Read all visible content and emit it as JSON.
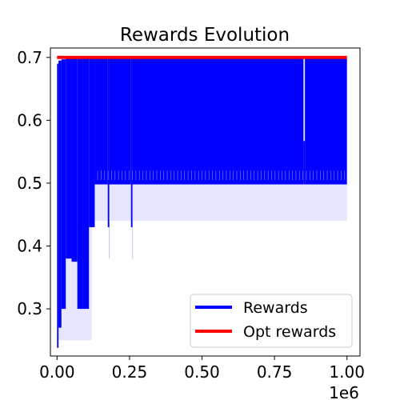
{
  "chart_data": {
    "type": "line",
    "title": "Rewards Evolution",
    "xlabel": "",
    "ylabel": "",
    "x_offset_label": "1e6",
    "xlim": [
      -0.023,
      1.045
    ],
    "ylim": [
      0.225,
      0.715
    ],
    "xticks": [
      0.0,
      0.25,
      0.5,
      0.75,
      1.0
    ],
    "xtick_labels": [
      "0.00",
      "0.25",
      "0.50",
      "0.75",
      "1.00"
    ],
    "yticks": [
      0.3,
      0.4,
      0.5,
      0.6,
      0.7
    ],
    "ytick_labels": [
      "0.3",
      "0.4",
      "0.5",
      "0.6",
      "0.7"
    ],
    "grid": false,
    "legend": {
      "position": "lower right"
    },
    "colors": {
      "rewards": "#0000ff",
      "opt": "#ff0000",
      "band": "#e6e6ff"
    },
    "series": [
      {
        "name": "Rewards",
        "color": "#0000ff",
        "note_values": "oscillating envelope per x-segment: [x_start, x_end, min, max]",
        "segments": [
          [
            0.0,
            0.005,
            0.238,
            0.69
          ],
          [
            0.005,
            0.015,
            0.27,
            0.695
          ],
          [
            0.015,
            0.03,
            0.3,
            0.697
          ],
          [
            0.03,
            0.05,
            0.38,
            0.698
          ],
          [
            0.05,
            0.07,
            0.375,
            0.698
          ],
          [
            0.07,
            0.09,
            0.3,
            0.698
          ],
          [
            0.09,
            0.11,
            0.3,
            0.698
          ],
          [
            0.11,
            0.13,
            0.43,
            0.698
          ],
          [
            0.13,
            0.175,
            0.498,
            0.698
          ],
          [
            0.175,
            0.18,
            0.43,
            0.698
          ],
          [
            0.18,
            0.255,
            0.498,
            0.698
          ],
          [
            0.255,
            0.26,
            0.43,
            0.698
          ],
          [
            0.26,
            0.85,
            0.498,
            0.698
          ],
          [
            0.85,
            0.855,
            0.498,
            0.567
          ],
          [
            0.855,
            1.0,
            0.498,
            0.698
          ]
        ],
        "band": [
          0.44,
          0.698
        ]
      },
      {
        "name": "Opt rewards",
        "color": "#ff0000",
        "x": [
          0.0,
          1.0
        ],
        "y": [
          0.7,
          0.7
        ]
      }
    ]
  }
}
